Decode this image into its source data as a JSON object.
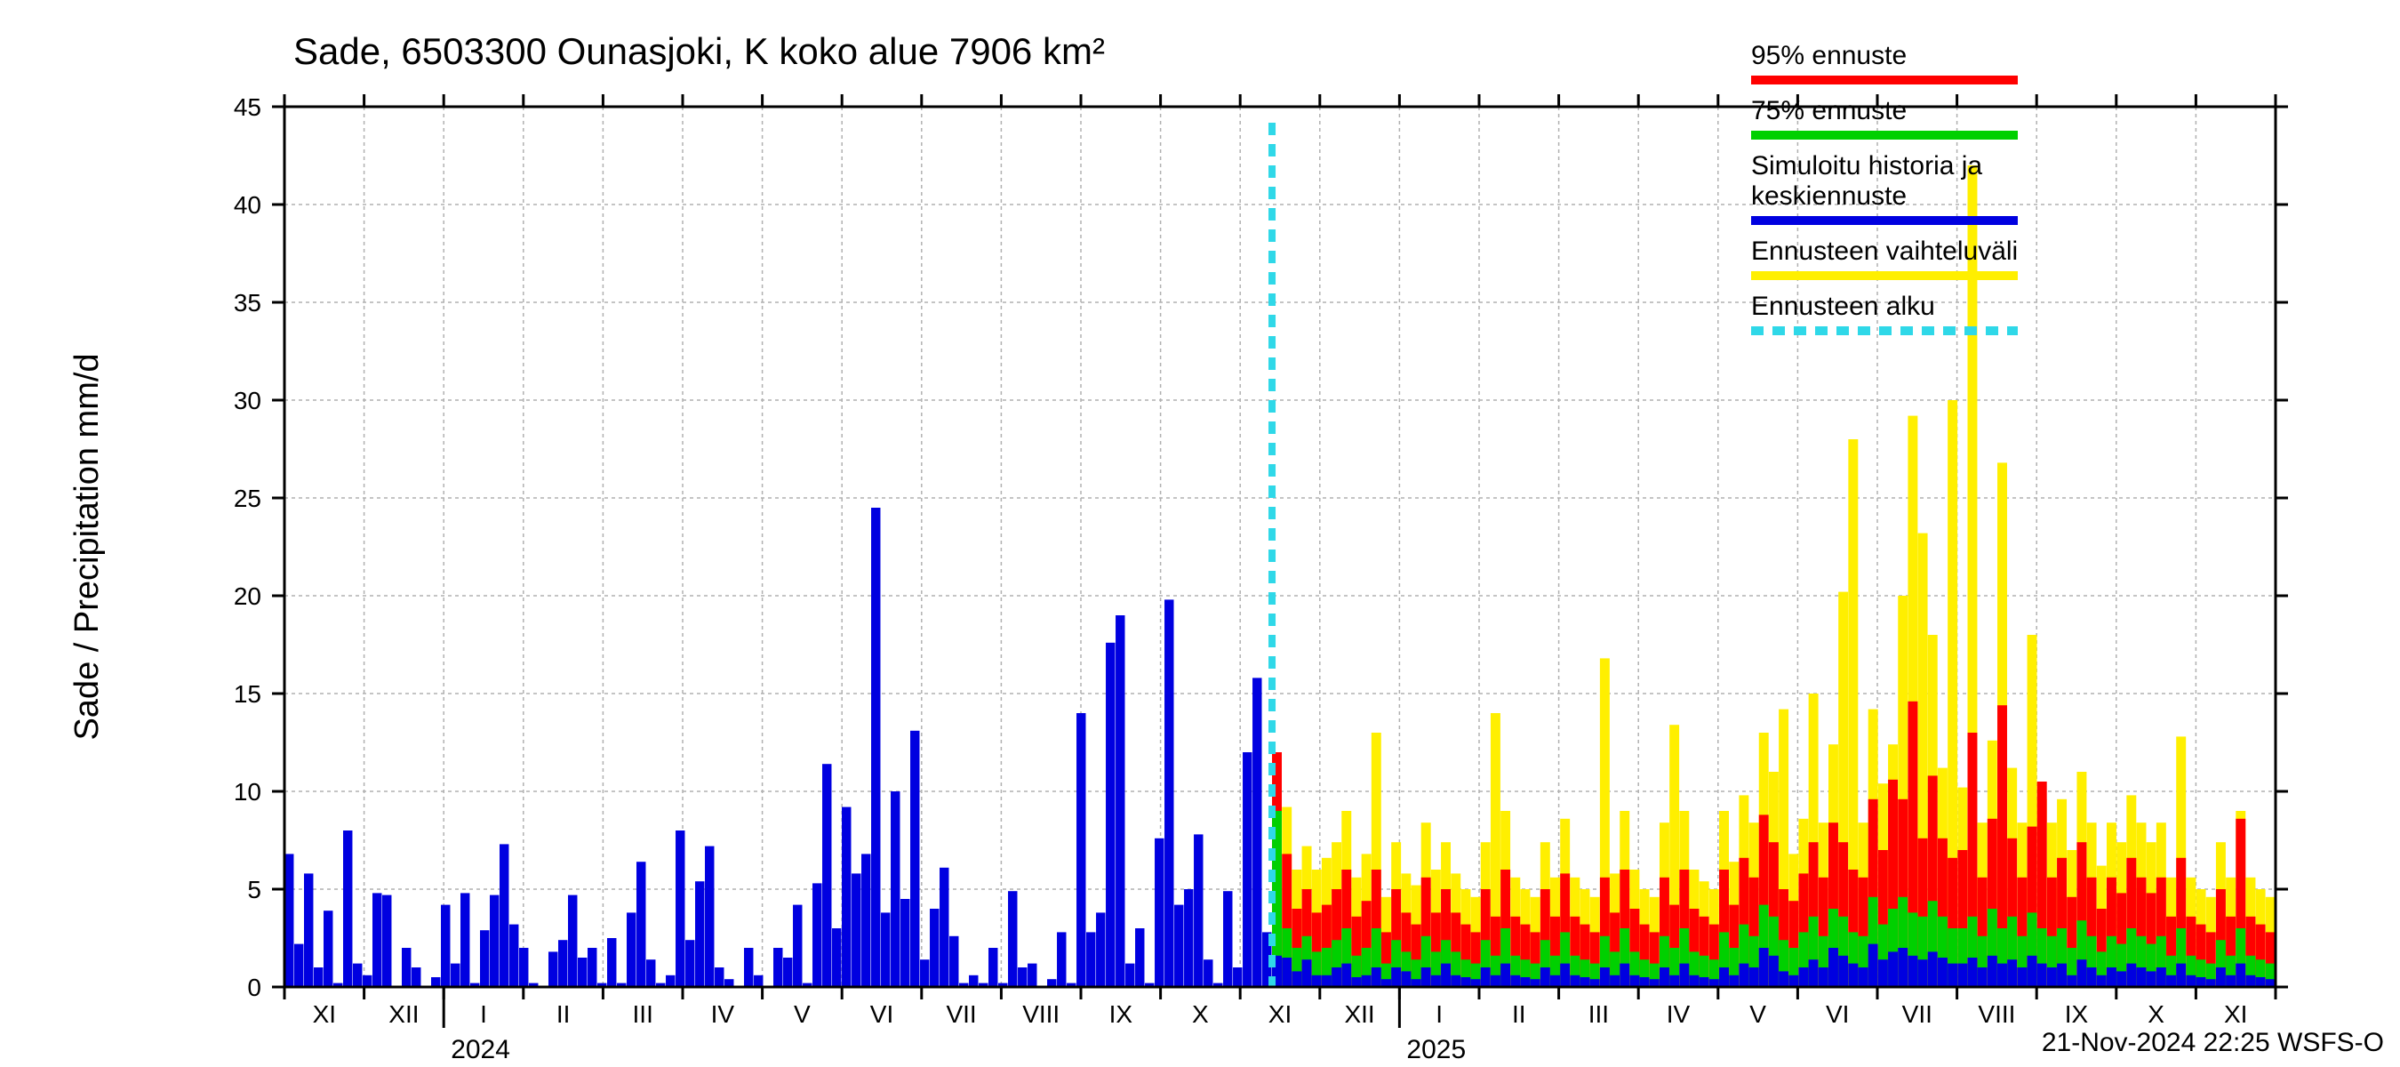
{
  "chart": {
    "type": "bar-stacked-timeseries",
    "title": "Sade, 6503300 Ounasjoki, K koko alue 7906 km²",
    "ylabel": "Sade / Precipitation   mm/d",
    "footer": "21-Nov-2024 22:25 WSFS-O",
    "background_color": "#ffffff",
    "axis_color": "#000000",
    "grid_color": "#b0b0b0",
    "grid_dash": "4,4",
    "ylim": [
      0,
      45
    ],
    "ytick_step": 5,
    "yticks": [
      0,
      5,
      10,
      15,
      20,
      25,
      30,
      35,
      40,
      45
    ],
    "title_fontsize": 42,
    "label_fontsize": 38,
    "tick_fontsize": 28,
    "month_labels": [
      "XI",
      "XII",
      "I",
      "II",
      "III",
      "IV",
      "V",
      "VI",
      "VII",
      "VIII",
      "IX",
      "X",
      "XI",
      "XII",
      "I",
      "II",
      "III",
      "IV",
      "V",
      "VI",
      "VII",
      "VIII",
      "IX",
      "X",
      "XI"
    ],
    "year_labels": [
      {
        "label": "2024",
        "after_month_index": 2
      },
      {
        "label": "2025",
        "after_month_index": 14
      }
    ],
    "forecast_start_month_index": 12.4,
    "forecast_line_color": "#2fd8e8",
    "forecast_line_dash": "14,10",
    "forecast_line_width": 8,
    "legend": {
      "items": [
        {
          "label": "95% ennuste",
          "color": "#ff0000",
          "type": "line",
          "width": 10
        },
        {
          "label": "75% ennuste",
          "color": "#00d000",
          "type": "line",
          "width": 10
        },
        {
          "label": "Simuloitu historia ja keskiennuste",
          "color": "#0000e0",
          "type": "line",
          "width": 10,
          "multiline": true
        },
        {
          "label": "Ennusteen vaihteluväli",
          "color": "#ffef00",
          "type": "line",
          "width": 10
        },
        {
          "label": "Ennusteen alku",
          "color": "#2fd8e8",
          "type": "dash",
          "width": 10
        }
      ]
    },
    "colors": {
      "blue": "#0000e0",
      "green": "#00d000",
      "red": "#ff0000",
      "yellow": "#ffef00"
    },
    "history_values": [
      6.8,
      2.2,
      5.8,
      1.0,
      3.9,
      0.2,
      8.0,
      1.2,
      0.6,
      4.8,
      4.7,
      0.0,
      2.0,
      1.0,
      0.0,
      0.5,
      4.2,
      1.2,
      4.8,
      0.2,
      2.9,
      4.7,
      7.3,
      3.2,
      2.0,
      0.2,
      0.0,
      1.8,
      2.4,
      4.7,
      1.5,
      2.0,
      0.2,
      2.5,
      0.2,
      3.8,
      6.4,
      1.4,
      0.2,
      0.6,
      8.0,
      2.4,
      5.4,
      7.2,
      1.0,
      0.4,
      0.0,
      2.0,
      0.6,
      0.0,
      2.0,
      1.5,
      4.2,
      0.2,
      5.3,
      11.4,
      3.0,
      9.2,
      5.8,
      6.8,
      24.5,
      3.8,
      10.0,
      4.5,
      13.1,
      1.4,
      4.0,
      6.1,
      2.6,
      0.2,
      0.6,
      0.2,
      2.0,
      0.2,
      4.9,
      1.0,
      1.2,
      0.0,
      0.4,
      2.8,
      0.2,
      14.0,
      2.8,
      3.8,
      17.6,
      19.0,
      1.2,
      3.0,
      0.2,
      7.6,
      19.8,
      4.2,
      5.0,
      7.8,
      1.4,
      0.2,
      4.9,
      1.0,
      12.0,
      15.8,
      2.8
    ],
    "forecast_blue": [
      1.6,
      1.5,
      0.8,
      1.4,
      0.6,
      0.6,
      1.0,
      1.2,
      0.5,
      0.6,
      1.0,
      0.4,
      1.0,
      0.8,
      0.4,
      1.0,
      0.6,
      1.2,
      0.6,
      0.5,
      0.4,
      1.0,
      0.6,
      1.2,
      0.6,
      0.5,
      0.4,
      1.0,
      0.6,
      1.2,
      0.6,
      0.5,
      0.4,
      1.0,
      0.6,
      1.2,
      0.6,
      0.5,
      0.4,
      1.0,
      0.6,
      1.2,
      0.6,
      0.5,
      0.4,
      1.0,
      0.6,
      1.2,
      1.0,
      2.0,
      1.6,
      0.8,
      0.6,
      1.0,
      1.4,
      1.0,
      2.0,
      1.6,
      1.2,
      1.0,
      2.2,
      1.4,
      1.8,
      2.0,
      1.6,
      1.4,
      1.8,
      1.5,
      1.2,
      1.2,
      1.5,
      1.0,
      1.6,
      1.2,
      1.4,
      1.0,
      1.6,
      1.2,
      1.0,
      1.2,
      0.6,
      1.4,
      1.0,
      0.6,
      1.0,
      0.8,
      1.2,
      1.0,
      0.8,
      1.0,
      0.6,
      1.2,
      0.6,
      0.5,
      0.4,
      1.0,
      0.6,
      1.2,
      0.6,
      0.5,
      0.4
    ],
    "forecast_green": [
      9.0,
      3.0,
      2.0,
      2.6,
      1.8,
      2.0,
      2.4,
      3.0,
      1.6,
      2.0,
      3.0,
      1.2,
      2.4,
      1.8,
      1.4,
      2.6,
      1.8,
      2.4,
      1.8,
      1.4,
      1.2,
      2.4,
      1.6,
      3.0,
      1.6,
      1.4,
      1.2,
      2.4,
      1.6,
      2.8,
      1.6,
      1.4,
      1.2,
      2.6,
      1.8,
      3.0,
      1.8,
      1.4,
      1.2,
      2.6,
      2.0,
      3.0,
      1.8,
      1.6,
      1.4,
      2.8,
      2.0,
      3.2,
      2.6,
      4.2,
      3.6,
      2.4,
      2.0,
      2.8,
      3.6,
      2.6,
      4.0,
      3.6,
      2.8,
      2.6,
      4.6,
      3.2,
      4.0,
      4.6,
      3.8,
      3.6,
      4.4,
      3.6,
      3.0,
      3.0,
      3.6,
      2.6,
      4.0,
      3.0,
      3.6,
      2.6,
      3.8,
      3.0,
      2.6,
      3.0,
      2.0,
      3.4,
      2.6,
      1.8,
      2.6,
      2.2,
      3.0,
      2.6,
      2.2,
      2.6,
      1.6,
      3.0,
      1.6,
      1.4,
      1.2,
      2.4,
      1.6,
      3.0,
      1.6,
      1.4,
      1.2
    ],
    "forecast_red": [
      12.0,
      6.8,
      4.0,
      5.0,
      3.8,
      4.2,
      5.0,
      6.0,
      3.6,
      4.4,
      6.0,
      2.8,
      5.0,
      3.8,
      3.2,
      5.6,
      3.8,
      5.0,
      3.8,
      3.2,
      2.8,
      5.0,
      3.6,
      6.0,
      3.6,
      3.2,
      2.8,
      5.0,
      3.6,
      5.8,
      3.6,
      3.2,
      2.8,
      5.6,
      3.8,
      6.0,
      4.0,
      3.2,
      2.8,
      5.6,
      4.2,
      6.0,
      4.0,
      3.6,
      3.2,
      6.0,
      4.2,
      6.6,
      5.6,
      8.8,
      7.4,
      5.0,
      4.4,
      5.8,
      7.4,
      5.6,
      8.4,
      7.4,
      6.0,
      5.6,
      9.6,
      7.0,
      10.6,
      9.6,
      14.6,
      7.6,
      10.8,
      7.6,
      6.6,
      7.0,
      13.0,
      5.6,
      8.6,
      14.4,
      7.6,
      5.6,
      8.2,
      10.5,
      5.6,
      6.6,
      4.6,
      7.4,
      5.6,
      4.0,
      5.6,
      4.8,
      6.6,
      5.6,
      4.8,
      5.6,
      3.6,
      6.6,
      3.6,
      3.2,
      2.8,
      5.0,
      3.6,
      8.6,
      3.6,
      3.2,
      2.8
    ],
    "forecast_yellow": [
      12.0,
      9.2,
      6.0,
      7.2,
      6.0,
      6.6,
      7.4,
      9.0,
      5.6,
      6.8,
      13.0,
      4.6,
      7.4,
      5.8,
      5.2,
      8.4,
      6.0,
      7.4,
      5.8,
      5.0,
      4.6,
      7.4,
      14.0,
      9.0,
      5.6,
      5.0,
      4.6,
      7.4,
      5.6,
      8.6,
      5.6,
      5.0,
      4.6,
      16.8,
      5.8,
      9.0,
      6.0,
      5.0,
      4.6,
      8.4,
      13.4,
      9.0,
      6.0,
      5.4,
      5.0,
      9.0,
      6.4,
      9.8,
      8.4,
      13.0,
      11.0,
      14.2,
      6.8,
      8.6,
      15.0,
      8.4,
      12.4,
      20.2,
      28.0,
      8.4,
      14.2,
      10.4,
      12.4,
      20.0,
      29.2,
      23.2,
      18.0,
      11.2,
      30.0,
      10.2,
      42.0,
      8.4,
      12.6,
      26.8,
      11.2,
      8.4,
      18.0,
      9.6,
      8.4,
      9.6,
      7.0,
      11.0,
      8.4,
      6.2,
      8.4,
      7.4,
      9.8,
      8.4,
      7.4,
      8.4,
      5.6,
      12.8,
      5.6,
      5.0,
      4.6,
      7.4,
      5.6,
      9.0,
      5.6,
      5.0,
      4.6
    ]
  }
}
